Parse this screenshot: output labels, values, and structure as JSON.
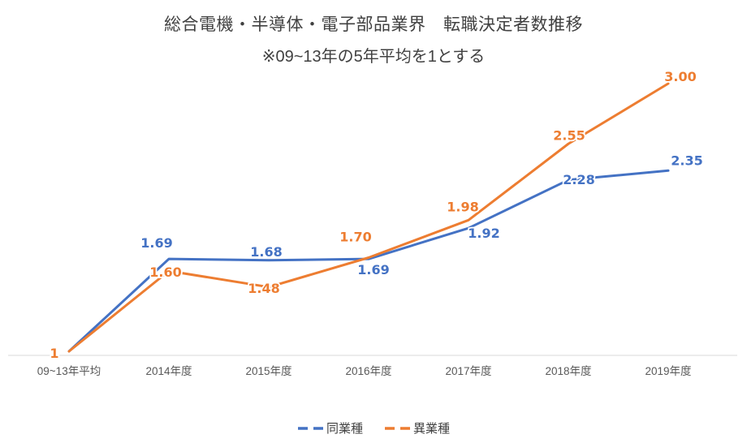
{
  "chart_data": {
    "type": "line",
    "title": "総合電機・半導体・電子部品業界　転職決定者数推移",
    "subtitle": "※09~13年の5年平均を1とする",
    "categories": [
      "09~13年平均",
      "2014年度",
      "2015年度",
      "2016年度",
      "2017年度",
      "2018年度",
      "2019年度"
    ],
    "series": [
      {
        "name": "同業種",
        "color": "#4472C4",
        "values": [
          1,
          1.69,
          1.68,
          1.69,
          1.92,
          2.28,
          2.35
        ],
        "labels": [
          "",
          "1.69",
          "1.68",
          "1.69",
          "1.92",
          "2.28",
          "2.35"
        ]
      },
      {
        "name": "異業種",
        "color": "#ED7D31",
        "values": [
          1,
          1.6,
          1.48,
          1.7,
          1.98,
          2.55,
          3.0
        ],
        "labels": [
          "1",
          "1.60",
          "1.48",
          "1.70",
          "1.98",
          "2.55",
          "3.00"
        ]
      }
    ],
    "baseline_value": 1,
    "ylim": [
      1,
      3.0
    ],
    "grid": false,
    "legend_position": "bottom",
    "axis_color": "#D9D9D9",
    "axis_text_color": "#595959",
    "title_color": "#404040"
  }
}
